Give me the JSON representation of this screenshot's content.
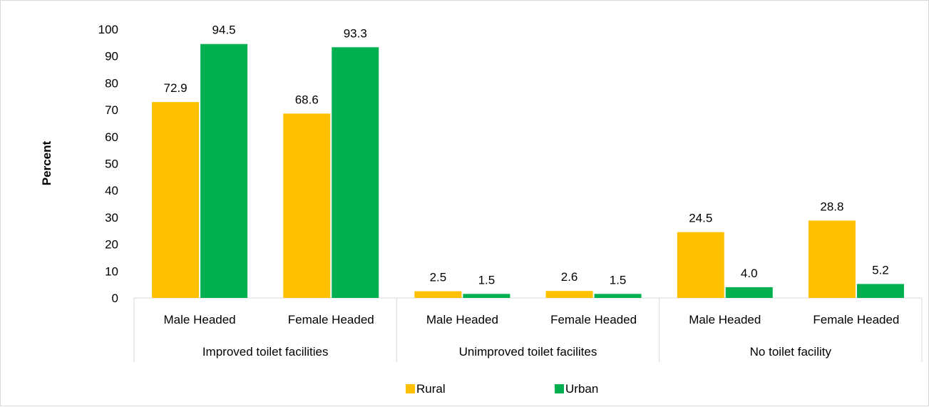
{
  "chart_data": {
    "type": "bar",
    "ylabel": "Percent",
    "ylim": [
      0,
      100
    ],
    "yticks": [
      0,
      10,
      20,
      30,
      40,
      50,
      60,
      70,
      80,
      90,
      100
    ],
    "groups": [
      {
        "label": "Improved toilet facilities",
        "categories": [
          "Male Headed",
          "Female Headed"
        ]
      },
      {
        "label": "Unimproved toilet facilites",
        "categories": [
          "Male Headed",
          "Female Headed"
        ]
      },
      {
        "label": "No toilet facility",
        "categories": [
          "Male Headed",
          "Female Headed"
        ]
      }
    ],
    "series": [
      {
        "name": "Rural",
        "color": "#FFC000",
        "values": [
          72.9,
          68.6,
          2.5,
          2.6,
          24.5,
          28.8
        ]
      },
      {
        "name": "Urban",
        "color": "#00B050",
        "values": [
          94.5,
          93.3,
          1.5,
          1.5,
          4.0,
          5.2
        ]
      }
    ],
    "legend_position": "bottom",
    "grid": false
  }
}
